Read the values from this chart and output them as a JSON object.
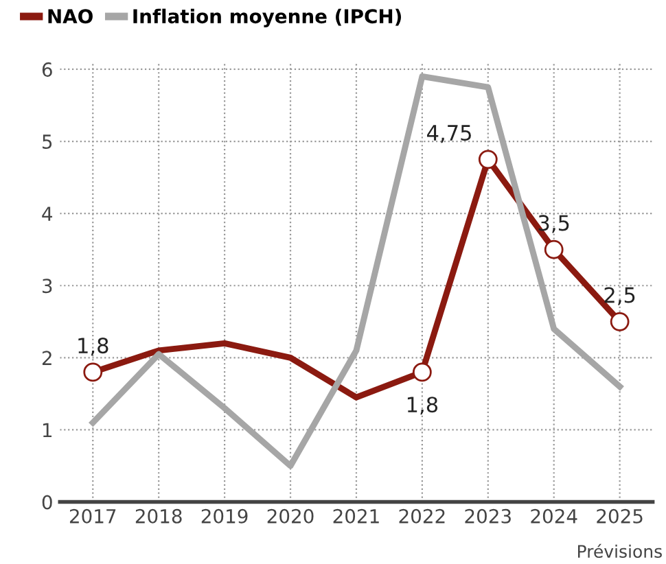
{
  "chart_data": {
    "type": "line",
    "categories": [
      "2017",
      "2018",
      "2019",
      "2020",
      "2021",
      "2022",
      "2023",
      "2024",
      "2025"
    ],
    "series": [
      {
        "name": "NAO",
        "color": "#8b1a10",
        "values": [
          1.8,
          2.1,
          2.2,
          2.0,
          1.45,
          1.8,
          4.75,
          3.5,
          2.5
        ],
        "value_labels": [
          "1,8",
          null,
          null,
          null,
          null,
          "1,8",
          "4,75",
          "3,5",
          "2,5"
        ]
      },
      {
        "name": "Inflation moyenne (IPCH)",
        "color": "#a6a6a6",
        "values": [
          1.1,
          2.05,
          1.3,
          0.5,
          2.1,
          5.9,
          5.75,
          2.4,
          1.6
        ]
      }
    ],
    "ylim": [
      0,
      6.1
    ],
    "yticks": [
      0,
      1,
      2,
      3,
      4,
      5,
      6
    ],
    "grid": true,
    "legend": "top left",
    "annotations": [
      "Prévisions"
    ]
  }
}
